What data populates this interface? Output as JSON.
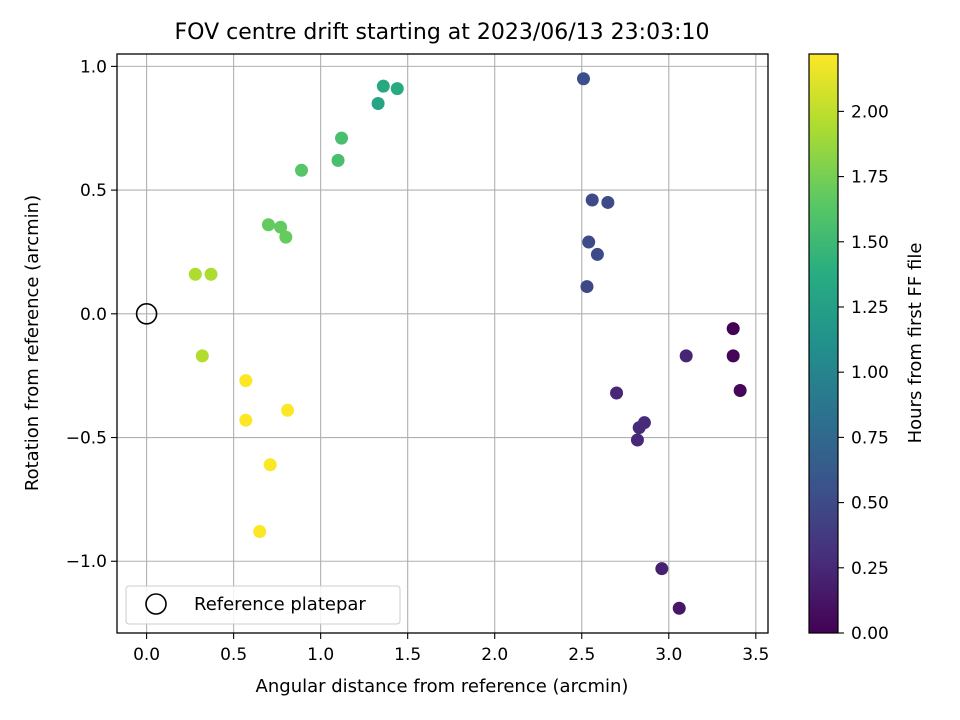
{
  "chart_data": {
    "type": "scatter",
    "title": "FOV centre drift starting at 2023/06/13 23:03:10",
    "xlabel": "Angular distance from reference (arcmin)",
    "ylabel": "Rotation from reference (arcmin)",
    "xlim": [
      -0.17,
      3.57
    ],
    "ylim": [
      -1.29,
      1.05
    ],
    "xticks": [
      0.0,
      0.5,
      1.0,
      1.5,
      2.0,
      2.5,
      3.0,
      3.5
    ],
    "xtick_labels": [
      "0.0",
      "0.5",
      "1.0",
      "1.5",
      "2.0",
      "2.5",
      "3.0",
      "3.5"
    ],
    "yticks": [
      -1.0,
      -0.5,
      0.0,
      0.5,
      1.0
    ],
    "ytick_labels": [
      "−1.0",
      "−0.5",
      "0.0",
      "0.5",
      "1.0"
    ],
    "grid": true,
    "legend": {
      "placement": "lower-left",
      "entries": [
        "Reference platepar"
      ]
    },
    "reference_point": {
      "x": 0.0,
      "y": 0.0,
      "label": "Reference platepar"
    },
    "colorbar": {
      "label": "Hours from first FF file",
      "colormap": "viridis",
      "range": [
        0.0,
        2.22
      ],
      "ticks": [
        0.0,
        0.25,
        0.5,
        0.75,
        1.0,
        1.25,
        1.5,
        1.75,
        2.0
      ],
      "tick_labels": [
        "0.00",
        "0.25",
        "0.50",
        "0.75",
        "1.00",
        "1.25",
        "1.50",
        "1.75",
        "2.00"
      ]
    },
    "points": [
      {
        "x": 3.37,
        "y": -0.06,
        "hours": 0.0
      },
      {
        "x": 3.37,
        "y": -0.17,
        "hours": 0.02
      },
      {
        "x": 3.41,
        "y": -0.31,
        "hours": 0.04
      },
      {
        "x": 3.06,
        "y": -1.19,
        "hours": 0.14
      },
      {
        "x": 2.96,
        "y": -1.03,
        "hours": 0.2
      },
      {
        "x": 3.1,
        "y": -0.17,
        "hours": 0.23
      },
      {
        "x": 2.7,
        "y": -0.32,
        "hours": 0.24
      },
      {
        "x": 2.82,
        "y": -0.51,
        "hours": 0.25
      },
      {
        "x": 2.83,
        "y": -0.46,
        "hours": 0.26
      },
      {
        "x": 2.86,
        "y": -0.44,
        "hours": 0.27
      },
      {
        "x": 2.53,
        "y": 0.11,
        "hours": 0.48
      },
      {
        "x": 2.59,
        "y": 0.24,
        "hours": 0.5
      },
      {
        "x": 2.54,
        "y": 0.29,
        "hours": 0.5
      },
      {
        "x": 2.65,
        "y": 0.45,
        "hours": 0.51
      },
      {
        "x": 2.56,
        "y": 0.46,
        "hours": 0.51
      },
      {
        "x": 2.51,
        "y": 0.95,
        "hours": 0.53
      },
      {
        "x": 1.33,
        "y": 0.85,
        "hours": 1.3
      },
      {
        "x": 1.36,
        "y": 0.92,
        "hours": 1.33
      },
      {
        "x": 1.44,
        "y": 0.91,
        "hours": 1.35
      },
      {
        "x": 1.1,
        "y": 0.62,
        "hours": 1.55
      },
      {
        "x": 1.12,
        "y": 0.71,
        "hours": 1.55
      },
      {
        "x": 0.89,
        "y": 0.58,
        "hours": 1.62
      },
      {
        "x": 0.7,
        "y": 0.36,
        "hours": 1.68
      },
      {
        "x": 0.77,
        "y": 0.35,
        "hours": 1.68
      },
      {
        "x": 0.8,
        "y": 0.31,
        "hours": 1.69
      },
      {
        "x": 0.28,
        "y": 0.16,
        "hours": 1.95
      },
      {
        "x": 0.37,
        "y": 0.16,
        "hours": 1.94
      },
      {
        "x": 0.32,
        "y": -0.17,
        "hours": 1.96
      },
      {
        "x": 0.57,
        "y": -0.27,
        "hours": 2.22
      },
      {
        "x": 0.57,
        "y": -0.43,
        "hours": 2.22
      },
      {
        "x": 0.81,
        "y": -0.39,
        "hours": 2.21
      },
      {
        "x": 0.71,
        "y": -0.61,
        "hours": 2.21
      },
      {
        "x": 0.65,
        "y": -0.88,
        "hours": 2.21
      }
    ]
  }
}
